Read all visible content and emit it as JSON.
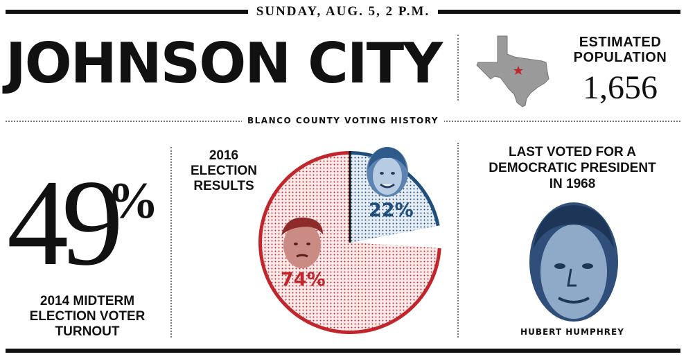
{
  "header": {
    "date": "SUNDAY, AUG. 5, 2 P.M."
  },
  "city": {
    "name": "JOHNSON CITY"
  },
  "population": {
    "label_line1": "ESTIMATED",
    "label_line2": "POPULATION",
    "value": "1,656"
  },
  "section_title": "BLANCO COUNTY VOTING HISTORY",
  "turnout": {
    "value": "49",
    "unit": "%",
    "label_line1": "2014 MIDTERM",
    "label_line2": "ELECTION VOTER",
    "label_line3": "TURNOUT"
  },
  "results_label": {
    "line1": "2016",
    "line2": "ELECTION",
    "line3": "RESULTS"
  },
  "last_voted": {
    "line1": "LAST VOTED FOR A",
    "line2": "DEMOCRATIC PRESIDENT",
    "line3": "IN 1968",
    "name": "HUBERT HUMPHREY"
  },
  "colors": {
    "republican": "#c0262c",
    "democrat": "#1f4e7a",
    "gray": "#9a9a9a"
  },
  "chart_data": {
    "type": "pie",
    "title": "",
    "slices": [
      {
        "label": "74%",
        "value": 74,
        "color": "#c0262c"
      },
      {
        "label": "22%",
        "value": 22,
        "color": "#1f4e7a"
      }
    ],
    "total": 100
  }
}
